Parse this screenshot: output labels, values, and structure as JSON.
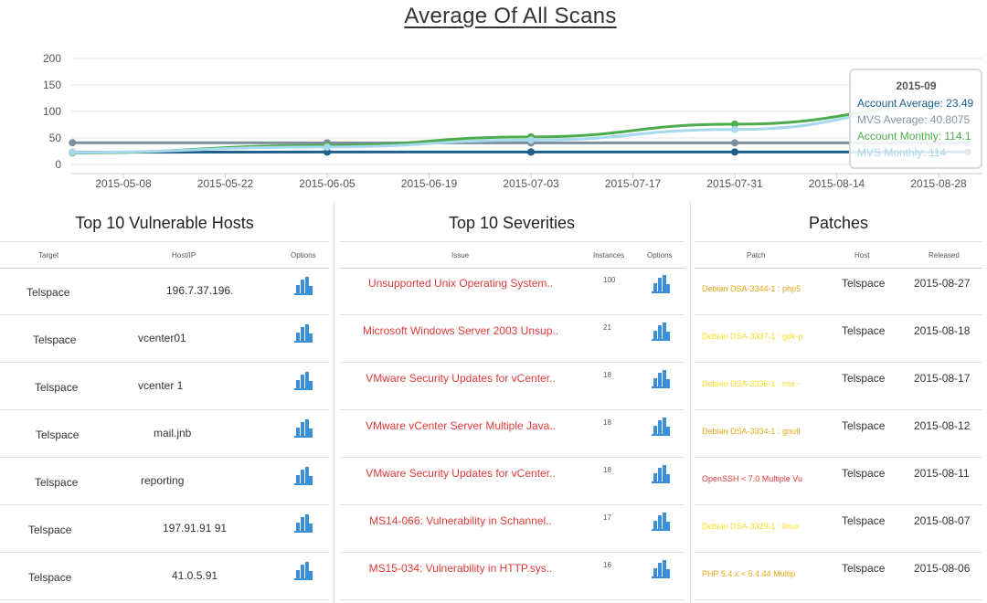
{
  "title": "Average Of All Scans",
  "chart_data": {
    "type": "line",
    "x": [
      "2015-05-08",
      "2015-05-22",
      "2015-06-05",
      "2015-06-19",
      "2015-07-03",
      "2015-07-17",
      "2015-07-31",
      "2015-08-14",
      "2015-08-28"
    ],
    "y_ticks": [
      "200",
      "150",
      "100",
      "50",
      "0"
    ],
    "ylim": [
      0,
      200
    ],
    "series": [
      {
        "name": "Account Average",
        "color": "#1f5f8b",
        "points": [
          [
            "2015-05-01",
            23
          ],
          [
            "2015-06-05",
            23.5
          ],
          [
            "2015-07-03",
            23.49
          ],
          [
            "2015-07-31",
            23.49
          ],
          [
            "2015-09-01",
            23.49
          ]
        ]
      },
      {
        "name": "MVS Average",
        "color": "#7d8e9d",
        "points": [
          [
            "2015-05-01",
            41
          ],
          [
            "2015-06-05",
            40.8
          ],
          [
            "2015-07-03",
            40.8
          ],
          [
            "2015-07-31",
            40.8
          ],
          [
            "2015-09-01",
            40.8075
          ]
        ]
      },
      {
        "name": "Account Monthly",
        "color": "#4cab4c",
        "points": [
          [
            "2015-05-01",
            22
          ],
          [
            "2015-06-05",
            36
          ],
          [
            "2015-07-03",
            52
          ],
          [
            "2015-07-31",
            76
          ],
          [
            "2015-09-01",
            114.1
          ]
        ]
      },
      {
        "name": "MVS Monthly",
        "color": "#a6d8ee",
        "points": [
          [
            "2015-05-01",
            23
          ],
          [
            "2015-06-05",
            33
          ],
          [
            "2015-07-03",
            46
          ],
          [
            "2015-07-31",
            66
          ],
          [
            "2015-09-01",
            114
          ]
        ]
      }
    ],
    "tooltip": {
      "header": "2015-09",
      "lines": [
        {
          "text": "Account Average: 23.49",
          "color": "#1f5f8b"
        },
        {
          "text": "MVS Average: 40.8075",
          "color": "#8695a3"
        },
        {
          "text": "Account Monthly: 114.1",
          "color": "#4cab4c"
        },
        {
          "text": "MVS Monthly: 114",
          "color": "#a6d8ee"
        }
      ]
    }
  },
  "hosts": {
    "title": "Top 10 Vulnerable Hosts",
    "columns": [
      "Target",
      "Host/IP",
      "Options"
    ],
    "rows": [
      {
        "target": "Telspace",
        "host": "196.7.37.196."
      },
      {
        "target": "Telspace",
        "host": "vcenter01"
      },
      {
        "target": "Telspace",
        "host": "vcenter 1"
      },
      {
        "target": "Telspace",
        "host": "mail.jnb"
      },
      {
        "target": "Telspace",
        "host": "reporting"
      },
      {
        "target": "Telspace",
        "host": "197.91.91   91"
      },
      {
        "target": "Telspace",
        "host": "41.0.5.91"
      }
    ]
  },
  "severities": {
    "title": "Top 10 Severities",
    "columns": [
      "Issue",
      "Instances",
      "Options"
    ],
    "rows": [
      {
        "issue": "Unsupported Unix Operating System..",
        "instances": "100"
      },
      {
        "issue": "Microsoft Windows Server 2003 Unsup..",
        "instances": "21"
      },
      {
        "issue": "VMware Security Updates for vCenter..",
        "instances": "18"
      },
      {
        "issue": "VMware vCenter Server Multiple Java..",
        "instances": "18"
      },
      {
        "issue": "VMware Security Updates for vCenter..",
        "instances": "18"
      },
      {
        "issue": "MS14-066: Vulnerability in Schannel..",
        "instances": "17"
      },
      {
        "issue": "MS15-034: Vulnerability in HTTP.sys..",
        "instances": "16"
      }
    ]
  },
  "patches": {
    "title": "Patches",
    "columns": [
      "Patch",
      "Host",
      "Released"
    ],
    "rows": [
      {
        "patch": "Debian DSA-3344-1 : php5",
        "color": "#e8a617",
        "host": "Telspace",
        "released": "2015-08-27"
      },
      {
        "patch": "Debian DSA-3337-1 : gdk-p",
        "color": "#f5e12a",
        "host": "Telspace",
        "released": "2015-08-18"
      },
      {
        "patch": "Debian DSA-3336-1 : nss -",
        "color": "#f5e12a",
        "host": "Telspace",
        "released": "2015-08-17"
      },
      {
        "patch": "Debian DSA-3334-1 : gnutl",
        "color": "#e8a617",
        "host": "Telspace",
        "released": "2015-08-12"
      },
      {
        "patch": "OpenSSH < 7.0 Multiple Vu",
        "color": "#e03a3a",
        "host": "Telspace",
        "released": "2015-08-11"
      },
      {
        "patch": "Debian DSA-3329-1 : linux",
        "color": "#f5e12a",
        "host": "Telspace",
        "released": "2015-08-07"
      },
      {
        "patch": "PHP 5.4.x < 5.4.44 Multip",
        "color": "#e8a617",
        "host": "Telspace",
        "released": "2015-08-06"
      }
    ]
  },
  "icons": {
    "options": "bar-chart-icon"
  }
}
